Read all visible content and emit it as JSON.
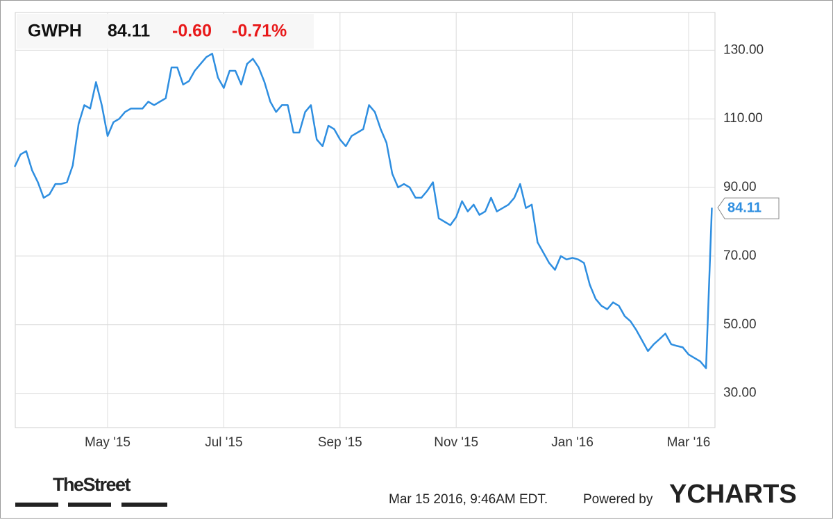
{
  "header": {
    "symbol": "GWPH",
    "price": "84.11",
    "change": "-0.60",
    "change_percent": "-0.71%"
  },
  "chart_data": {
    "type": "line",
    "categories": [
      null,
      null,
      null,
      null,
      null,
      null,
      null,
      null,
      null,
      null,
      null,
      null,
      null,
      null,
      null,
      null,
      "May '15",
      null,
      null,
      null,
      null,
      null,
      null,
      null,
      null,
      null,
      null,
      null,
      null,
      null,
      null,
      null,
      null,
      null,
      null,
      null,
      "Jul '15",
      null,
      null,
      null,
      null,
      null,
      null,
      null,
      null,
      null,
      null,
      null,
      null,
      null,
      null,
      null,
      null,
      null,
      null,
      null,
      "Sep '15",
      null,
      null,
      null,
      null,
      null,
      null,
      null,
      null,
      null,
      null,
      null,
      null,
      null,
      null,
      null,
      null,
      null,
      null,
      null,
      "Nov '15",
      null,
      null,
      null,
      null,
      null,
      null,
      null,
      null,
      null,
      null,
      null,
      null,
      null,
      null,
      null,
      null,
      null,
      null,
      null,
      "Jan '16",
      null,
      null,
      null,
      null,
      null,
      null,
      null,
      null,
      null,
      null,
      null,
      null,
      null,
      null,
      null,
      null,
      null,
      null,
      null,
      "Mar '16",
      null,
      null,
      null,
      null
    ],
    "series": [
      {
        "name": "GWPH",
        "color": "#2e8ee0",
        "values": [
          96,
          99.6,
          100.6,
          95,
          91.5,
          87,
          88,
          91,
          91,
          91.5,
          96.4,
          108.5,
          114,
          113,
          120.7,
          114,
          105,
          109,
          110,
          112,
          113,
          113,
          113,
          115,
          114,
          115,
          116,
          125,
          125,
          120,
          121,
          124,
          126,
          128,
          129,
          122,
          119,
          124,
          124,
          120,
          126,
          127.5,
          125,
          120.7,
          115,
          112,
          114,
          114,
          106,
          106,
          112,
          114,
          104,
          102,
          108,
          107,
          104,
          102,
          105,
          106,
          107,
          114,
          112,
          107,
          103,
          94,
          90,
          91,
          90,
          87,
          87,
          89,
          91.5,
          81,
          80,
          79,
          81.4,
          86,
          83,
          85,
          82,
          83,
          87,
          83,
          84,
          85,
          87,
          91,
          84,
          85,
          74,
          71,
          68,
          66,
          70,
          69,
          69.5,
          69,
          68,
          61.6,
          57.5,
          55.5,
          54.5,
          56.5,
          55.5,
          52.5,
          51,
          48.4,
          45.4,
          42.3,
          44.3,
          45.8,
          47.4,
          44.3,
          43.8,
          43.4,
          41.3,
          40.3,
          39.3,
          37.3,
          84.11
        ]
      }
    ],
    "ylim": [
      20,
      141
    ],
    "yticks": [
      {
        "value": 30,
        "label": "30.00"
      },
      {
        "value": 50,
        "label": "50.00"
      },
      {
        "value": 70,
        "label": "70.00"
      },
      {
        "value": 90,
        "label": "90.00"
      },
      {
        "value": 110,
        "label": "110.00"
      },
      {
        "value": 130,
        "label": "130.00"
      }
    ],
    "grid": true
  },
  "footer": {
    "source_logo": "TheStreet",
    "timestamp": "Mar 15 2016, 9:46AM EDT.",
    "powered_by": "Powered by",
    "brand": "YCHARTS"
  }
}
